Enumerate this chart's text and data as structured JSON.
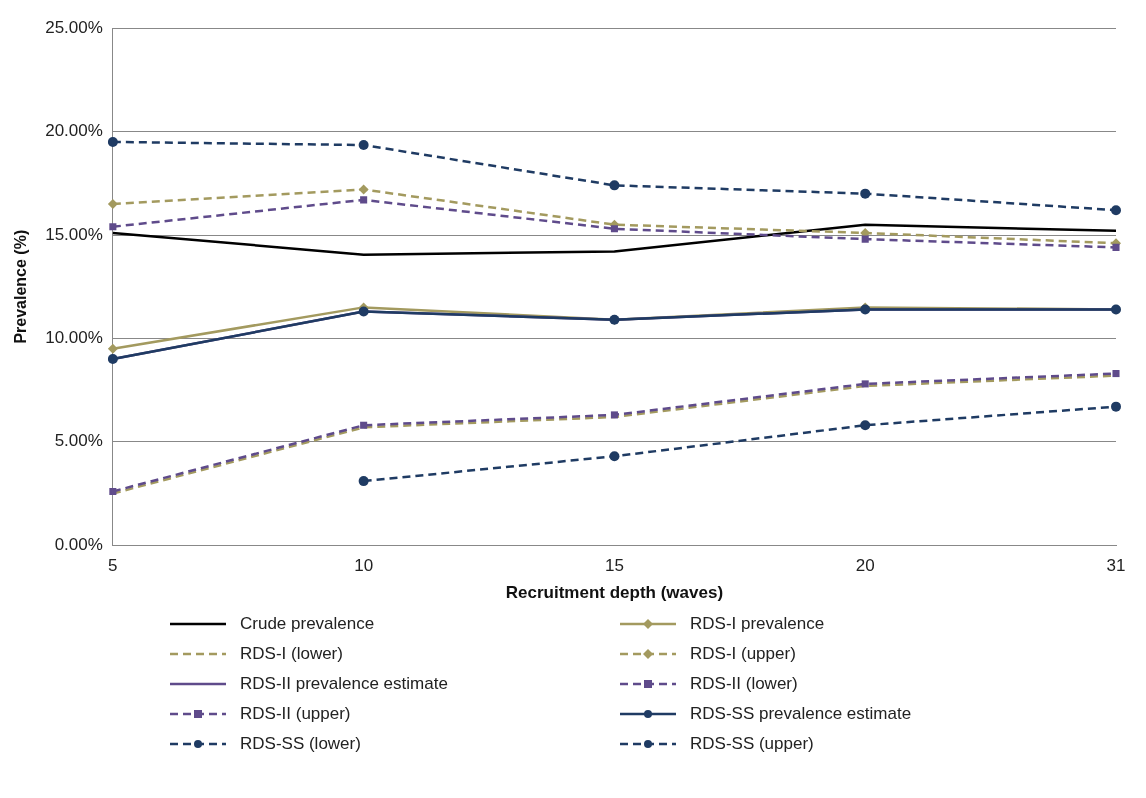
{
  "chart_data": {
    "type": "line",
    "xlabel": "Recruitment depth (waves)",
    "ylabel": "Prevalence (%)",
    "categories": [
      "5",
      "10",
      "15",
      "20",
      "31"
    ],
    "ylim": [
      0,
      25
    ],
    "yticks": [
      {
        "value": 0,
        "label": "0.00%"
      },
      {
        "value": 5,
        "label": "5.00%"
      },
      {
        "value": 10,
        "label": "10.00%"
      },
      {
        "value": 15,
        "label": "15.00%"
      },
      {
        "value": 20,
        "label": "20.00%"
      },
      {
        "value": 25,
        "label": "25.00%"
      }
    ],
    "grid": "y",
    "legend": "bottom",
    "series": [
      {
        "name": "Crude prevalence",
        "color": "#000000",
        "marker": "none",
        "line_style": "solid",
        "values": [
          15.1,
          14.05,
          14.2,
          15.5,
          15.2
        ]
      },
      {
        "name": "RDS-I prevalence",
        "color": "#a39a5f",
        "marker": "diamond",
        "line_style": "solid",
        "values": [
          9.5,
          11.5,
          10.9,
          11.5,
          11.4
        ]
      },
      {
        "name": "RDS-I (lower)",
        "color": "#a39a5f",
        "marker": "none",
        "line_style": "dashed",
        "values": [
          2.5,
          5.7,
          6.2,
          7.7,
          8.2
        ]
      },
      {
        "name": "RDS-I (upper)",
        "color": "#a39a5f",
        "marker": "diamond",
        "line_style": "dashed",
        "values": [
          16.5,
          17.2,
          15.5,
          15.1,
          14.6
        ]
      },
      {
        "name": "RDS-II prevalence estimate",
        "color": "#5f4b8b",
        "marker": "none",
        "line_style": "solid",
        "values": [
          9.0,
          11.3,
          10.9,
          11.4,
          11.4
        ]
      },
      {
        "name": "RDS-II (lower)",
        "color": "#5f4b8b",
        "marker": "square",
        "line_style": "dashed",
        "values": [
          2.6,
          5.8,
          6.3,
          7.8,
          8.3
        ]
      },
      {
        "name": "RDS-II (upper)",
        "color": "#5f4b8b",
        "marker": "square",
        "line_style": "dashed",
        "values": [
          15.4,
          16.7,
          15.3,
          14.8,
          14.4
        ]
      },
      {
        "name": "RDS-SS prevalence estimate",
        "color": "#1f3b63",
        "marker": "circle",
        "line_style": "solid",
        "values": [
          9.0,
          11.3,
          10.9,
          11.4,
          11.4
        ]
      },
      {
        "name": "RDS-SS (lower)",
        "color": "#1f3b63",
        "marker": "circle",
        "line_style": "dashed",
        "values": [
          null,
          3.1,
          4.3,
          5.8,
          6.7
        ]
      },
      {
        "name": "RDS-SS (upper)",
        "color": "#1f3b63",
        "marker": "circle",
        "line_style": "dashed",
        "values": [
          19.5,
          19.35,
          17.4,
          17.0,
          16.2
        ]
      }
    ]
  }
}
